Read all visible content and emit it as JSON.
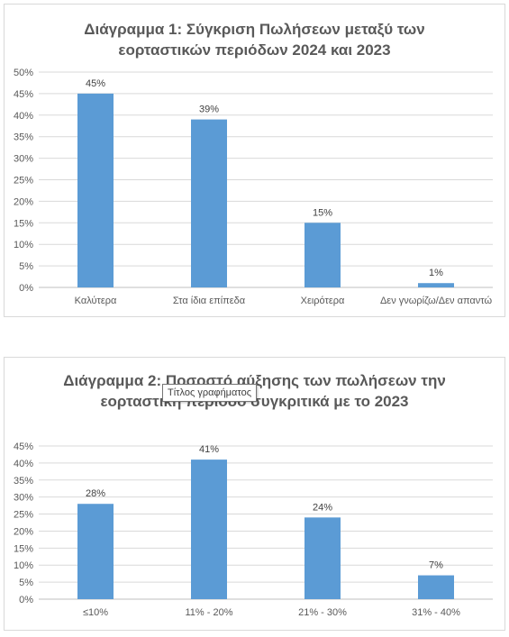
{
  "charts": [
    {
      "title_line1": "Διάγραμμα 1: Σύγκριση Πωλήσεων μεταξύ των",
      "title_line2": "εορταστικών περιόδων 2024 και 2023",
      "chart_data": {
        "type": "bar",
        "title": "Διάγραμμα 1: Σύγκριση Πωλήσεων μεταξύ των εορταστικών περιόδων 2024 και 2023",
        "categories": [
          "Καλύτερα",
          "Στα ίδια επίπεδα",
          "Χειρότερα",
          "Δεν γνωρίζω/Δεν απαντώ"
        ],
        "values": [
          45,
          39,
          15,
          1
        ],
        "data_labels": [
          "45%",
          "39%",
          "15%",
          "1%"
        ],
        "ylim": [
          0,
          50
        ],
        "yticks": [
          "0%",
          "5%",
          "10%",
          "15%",
          "20%",
          "25%",
          "30%",
          "35%",
          "40%",
          "45%",
          "50%"
        ],
        "grid": true,
        "legend": "none",
        "bar_color": "#5b9bd5"
      }
    },
    {
      "title_line1": "Διάγραμμα 2: Ποσοστό αύξησης των πωλήσεων την",
      "title_line2": "εορταστική περίοδο συγκριτικά με το 2023",
      "chart_data": {
        "type": "bar",
        "title": "Διάγραμμα 2: Ποσοστό αύξησης των πωλήσεων την εορταστική περίοδο συγκριτικά με το 2023",
        "categories": [
          "≤10%",
          "11% - 20%",
          "21% - 30%",
          "31% - 40%"
        ],
        "values": [
          28,
          41,
          24,
          7
        ],
        "data_labels": [
          "28%",
          "41%",
          "24%",
          "7%"
        ],
        "ylim": [
          0,
          45
        ],
        "yticks": [
          "0%",
          "5%",
          "10%",
          "15%",
          "20%",
          "25%",
          "30%",
          "35%",
          "40%",
          "45%"
        ],
        "grid": true,
        "legend": "none",
        "bar_color": "#5b9bd5"
      }
    }
  ],
  "tooltip": {
    "text": "Τίτλος γραφήματος"
  }
}
